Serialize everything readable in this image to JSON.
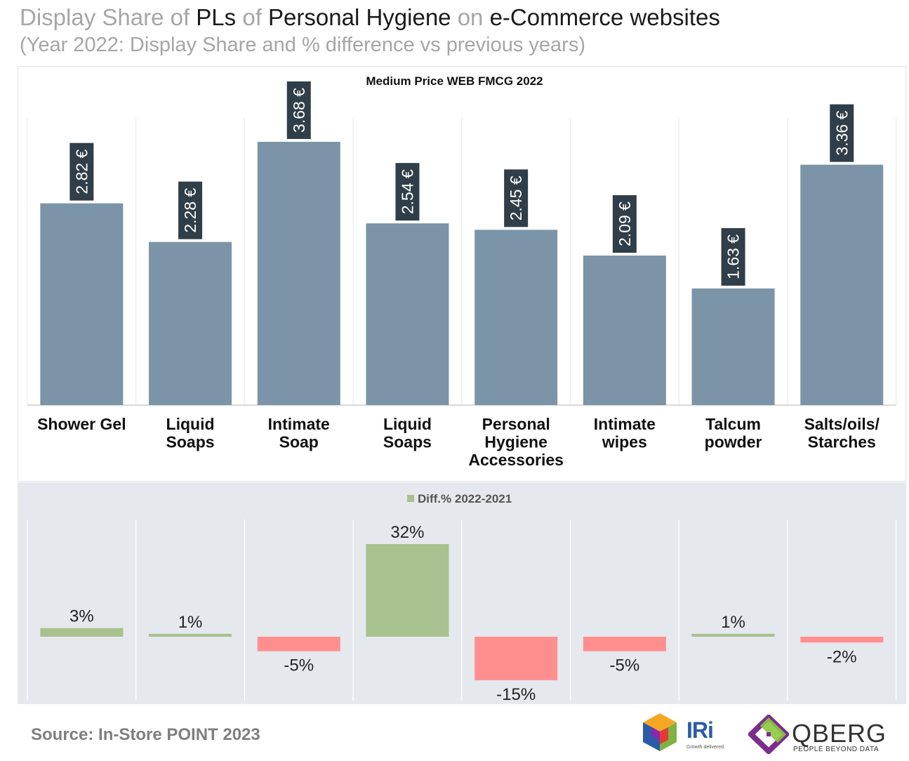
{
  "header": {
    "title_parts": [
      {
        "text": "Display Share of ",
        "dark": false
      },
      {
        "text": "PLs",
        "dark": true
      },
      {
        "text": " of ",
        "dark": false
      },
      {
        "text": "Personal Hygiene",
        "dark": true
      },
      {
        "text": " on ",
        "dark": false
      },
      {
        "text": "e-Commerce websites",
        "dark": true
      }
    ],
    "subtitle": "(Year 2022: Display Share and % difference vs previous years)"
  },
  "footer": {
    "source": "Source: In-Store POINT 2023",
    "logos": [
      {
        "name": "IRi",
        "tagline": "Growth delivered."
      },
      {
        "name": "QBERG",
        "tagline": "PEOPLE BEYOND DATA"
      }
    ]
  },
  "colors": {
    "bar_top": "#7b94a8",
    "label_box": "#2f3e48",
    "positive": "#a9c18e",
    "negative": "#ff8f8f",
    "legend_square": "#a9c18e"
  },
  "chart_data": [
    {
      "type": "bar",
      "title": "Medium Price WEB FMCG 2022",
      "categories": [
        [
          "Shower Gel"
        ],
        [
          "Liquid",
          "Soaps"
        ],
        [
          "Intimate",
          "Soap"
        ],
        [
          "Liquid",
          "Soaps"
        ],
        [
          "Personal",
          "Hygiene",
          "Accessories"
        ],
        [
          "Intimate",
          "wipes"
        ],
        [
          "Talcum",
          "powder"
        ],
        [
          "Salts/oils/",
          "Starches"
        ]
      ],
      "values": [
        2.82,
        2.28,
        3.68,
        2.54,
        2.45,
        2.09,
        1.63,
        3.36
      ],
      "data_labels": [
        "2.82 €",
        "2.28 €",
        "3.68 €",
        "2.54 €",
        "2.45 €",
        "2.09 €",
        "1.63 €",
        "3.36 €"
      ],
      "unit": "€",
      "ylim": [
        0,
        4
      ]
    },
    {
      "type": "bar",
      "legend": "Diff.% 2022-2021",
      "series": [
        {
          "name": "Diff.% 2022-2021",
          "values": [
            3,
            1,
            -5,
            32,
            -15,
            -5,
            1,
            -2
          ]
        }
      ],
      "data_labels": [
        "3%",
        "1%",
        "-5%",
        "32%",
        "-15%",
        "-5%",
        "1%",
        "-2%"
      ],
      "legend_placement": "top-center"
    }
  ]
}
